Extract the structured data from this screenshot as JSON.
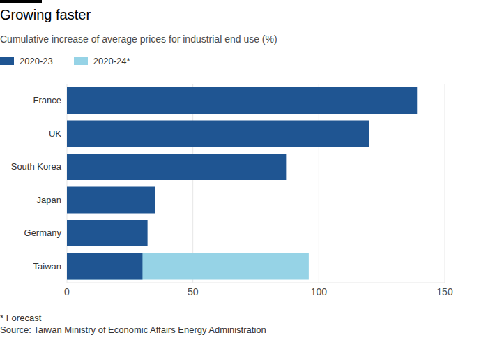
{
  "chart_data": {
    "type": "bar",
    "title": "Growing faster",
    "subtitle": "Cumulative increase of average prices for industrial end use (%)",
    "orientation": "horizontal",
    "categories": [
      "France",
      "UK",
      "South Korea",
      "Japan",
      "Germany",
      "Taiwan"
    ],
    "series": [
      {
        "name": "2020-23",
        "color": "#1f5592",
        "values": [
          139,
          120,
          87,
          35,
          32,
          30
        ]
      },
      {
        "name": "2020-24*",
        "color": "#96d3e6",
        "values": [
          null,
          null,
          null,
          null,
          null,
          96
        ]
      }
    ],
    "xlim": [
      0,
      150
    ],
    "xticks": [
      0,
      50,
      100,
      150
    ],
    "grid": true,
    "legend": "top left",
    "footnote": "* Forecast",
    "source": "Source: Taiwan Ministry of Economic Affairs Energy Administration"
  }
}
